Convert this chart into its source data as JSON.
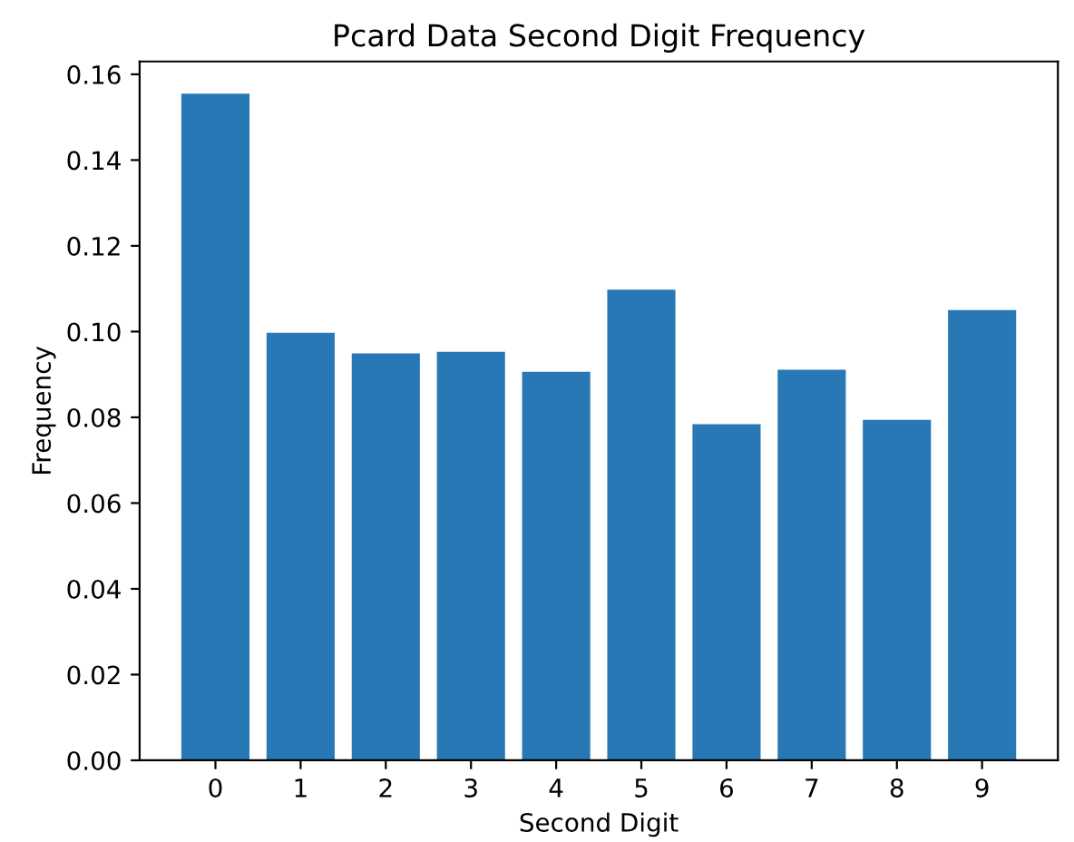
{
  "chart_data": {
    "type": "bar",
    "title": "Pcard Data Second Digit Frequency",
    "xlabel": "Second Digit",
    "ylabel": "Frequency",
    "categories": [
      "0",
      "1",
      "2",
      "3",
      "4",
      "5",
      "6",
      "7",
      "8",
      "9"
    ],
    "values": [
      0.1555,
      0.0997,
      0.0949,
      0.0953,
      0.0906,
      0.1098,
      0.0784,
      0.0911,
      0.0794,
      0.105
    ],
    "color": "#2878b5",
    "ylim": [
      0,
      0.163
    ],
    "yticks": [
      {
        "value": 0,
        "label": "0.00"
      },
      {
        "value": 0.02,
        "label": "0.02"
      },
      {
        "value": 0.04,
        "label": "0.04"
      },
      {
        "value": 0.06,
        "label": "0.06"
      },
      {
        "value": 0.08,
        "label": "0.08"
      },
      {
        "value": 0.1,
        "label": "0.10"
      },
      {
        "value": 0.12,
        "label": "0.12"
      },
      {
        "value": 0.14,
        "label": "0.14"
      },
      {
        "value": 0.16,
        "label": "0.16"
      }
    ],
    "grid": false
  }
}
